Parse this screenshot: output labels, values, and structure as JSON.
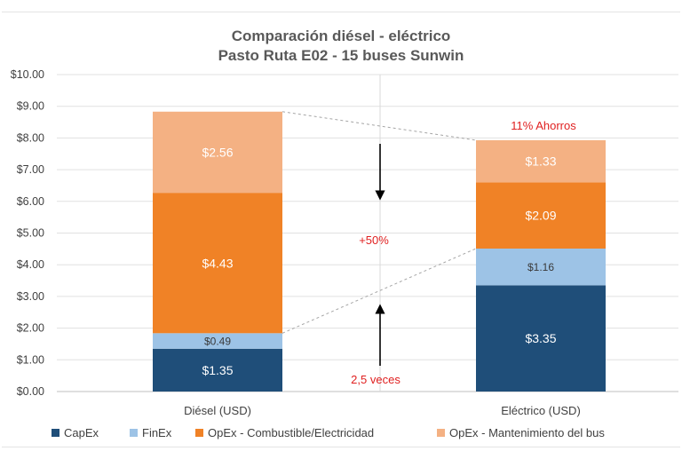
{
  "chart_data": {
    "type": "bar",
    "stacked": true,
    "title": "Comparación diésel - eléctrico",
    "subtitle": "Pasto Ruta E02 - 15 buses Sunwin",
    "categories": [
      "Diésel (USD)",
      "Eléctrico (USD)"
    ],
    "series": [
      {
        "name": "CapEx",
        "values": [
          1.35,
          3.35
        ],
        "labels": [
          "$1.35",
          "$3.35"
        ],
        "color": "#1f4e79",
        "label_color": "#ffffff"
      },
      {
        "name": "FinEx",
        "values": [
          0.49,
          1.16
        ],
        "labels": [
          "$0.49",
          "$1.16"
        ],
        "color": "#9dc3e6",
        "label_color": "#3a3a3a"
      },
      {
        "name": "OpEx - Combustible/Electricidad",
        "values": [
          4.43,
          2.09
        ],
        "labels": [
          "$4.43",
          "$2.09"
        ],
        "color": "#f08226",
        "label_color": "#ffffff"
      },
      {
        "name": "OpEx - Mantenimiento del bus",
        "values": [
          2.56,
          1.33
        ],
        "labels": [
          "$2.56",
          "$1.33"
        ],
        "color": "#f4b183",
        "label_color": "#ffffff"
      }
    ],
    "ylim": [
      0,
      10
    ],
    "yticks": [
      "$0.00",
      "$1.00",
      "$2.00",
      "$3.00",
      "$4.00",
      "$5.00",
      "$6.00",
      "$7.00",
      "$8.00",
      "$9.00",
      "$10.00"
    ],
    "grid": true,
    "legend_position": "bottom",
    "annotations": {
      "savings": "11% Ahorros",
      "opex_increase": "+50%",
      "capex_multiple": "2,5 veces"
    },
    "annotation_color": "#e02020"
  }
}
